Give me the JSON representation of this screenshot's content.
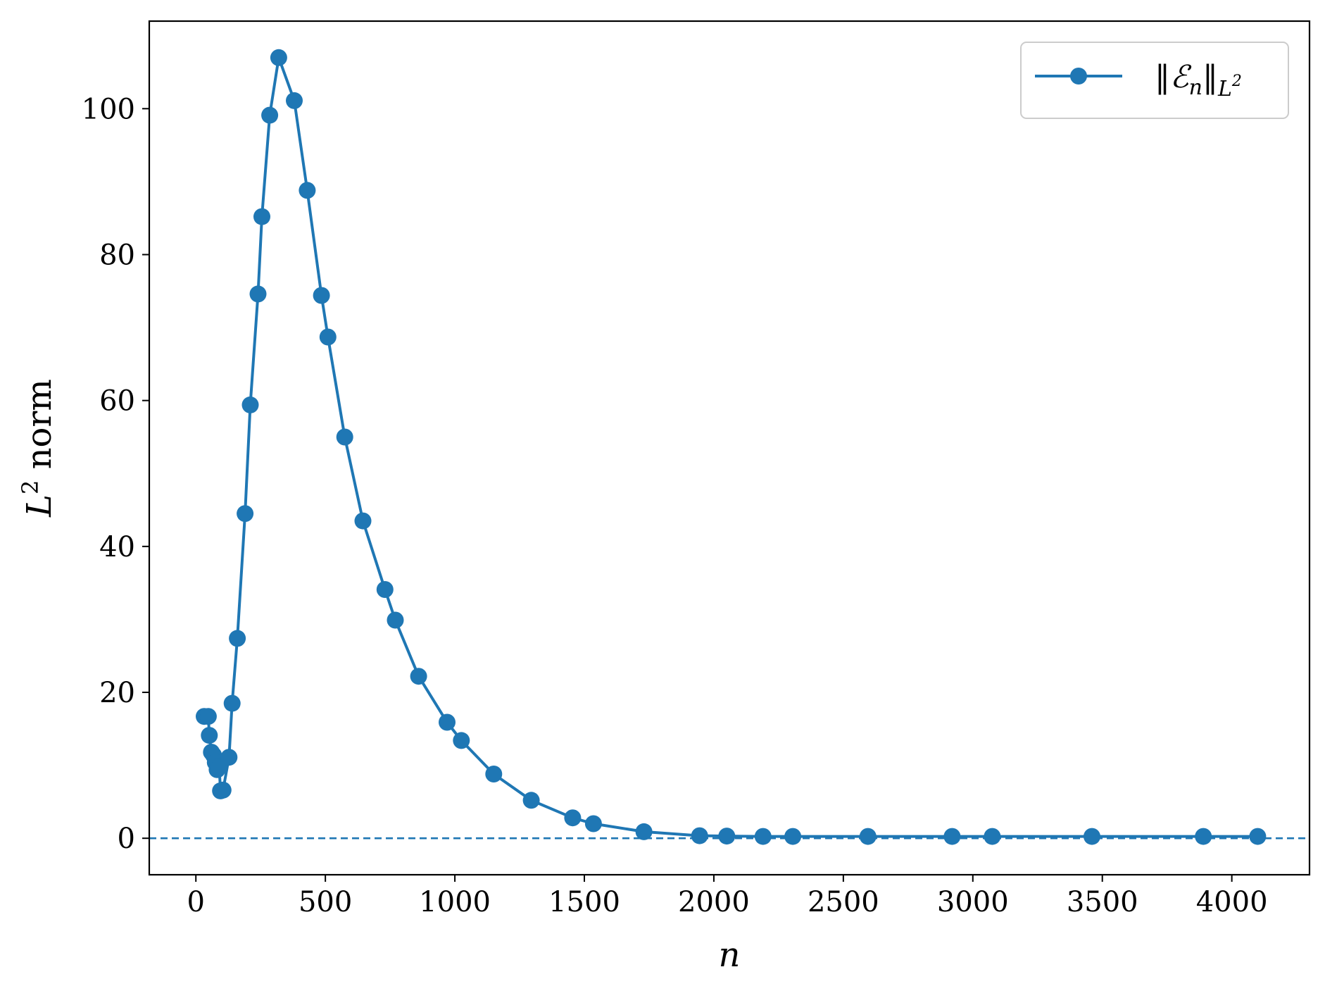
{
  "chart_data": {
    "type": "line",
    "xlabel": "n",
    "ylabel_main": "L",
    "ylabel_sup": "2",
    "ylabel_rest": " norm",
    "xlim": [
      -180,
      4300
    ],
    "ylim": [
      -5,
      112
    ],
    "xticks": [
      0,
      500,
      1000,
      1500,
      2000,
      2500,
      3000,
      3500,
      4000
    ],
    "xtick_labels": [
      "0",
      "500",
      "1000",
      "1500",
      "2000",
      "2500",
      "3000",
      "3500",
      "4000"
    ],
    "yticks": [
      0,
      20,
      40,
      60,
      80,
      100
    ],
    "ytick_labels": [
      "0",
      "20",
      "40",
      "60",
      "80",
      "100"
    ],
    "grid": false,
    "legend_position": "top-right",
    "reference_line": {
      "y": 0,
      "style": "dashed",
      "color": "#1f77b4"
    },
    "series": [
      {
        "name": "‖ℰₙ‖ L²",
        "legend_main": "‖ℰ",
        "legend_sub": "n",
        "legend_mid": "‖",
        "legend_sub2": "L",
        "legend_sup2": "2",
        "color": "#1f77b4",
        "marker": "circle",
        "x": [
          32,
          48,
          52,
          60,
          68,
          75,
          82,
          90,
          95,
          105,
          128,
          140,
          160,
          190,
          210,
          240,
          255,
          285,
          320,
          380,
          430,
          485,
          510,
          575,
          645,
          730,
          770,
          860,
          970,
          1025,
          1150,
          1295,
          1455,
          1535,
          1730,
          1945,
          2050,
          2190,
          2305,
          2595,
          2920,
          3075,
          3460,
          3890,
          4100
        ],
        "y": [
          16.7,
          16.7,
          14.1,
          11.8,
          11.4,
          10.4,
          9.4,
          9.8,
          6.5,
          6.6,
          11.1,
          18.5,
          27.4,
          44.5,
          59.4,
          74.6,
          85.2,
          99.1,
          107.0,
          101.1,
          88.8,
          74.4,
          68.7,
          55.0,
          43.5,
          34.1,
          29.9,
          22.2,
          15.9,
          13.4,
          8.8,
          5.2,
          2.8,
          2.0,
          0.9,
          0.35,
          0.3,
          0.25,
          0.25,
          0.25,
          0.25,
          0.25,
          0.25,
          0.25,
          0.25
        ]
      }
    ]
  }
}
